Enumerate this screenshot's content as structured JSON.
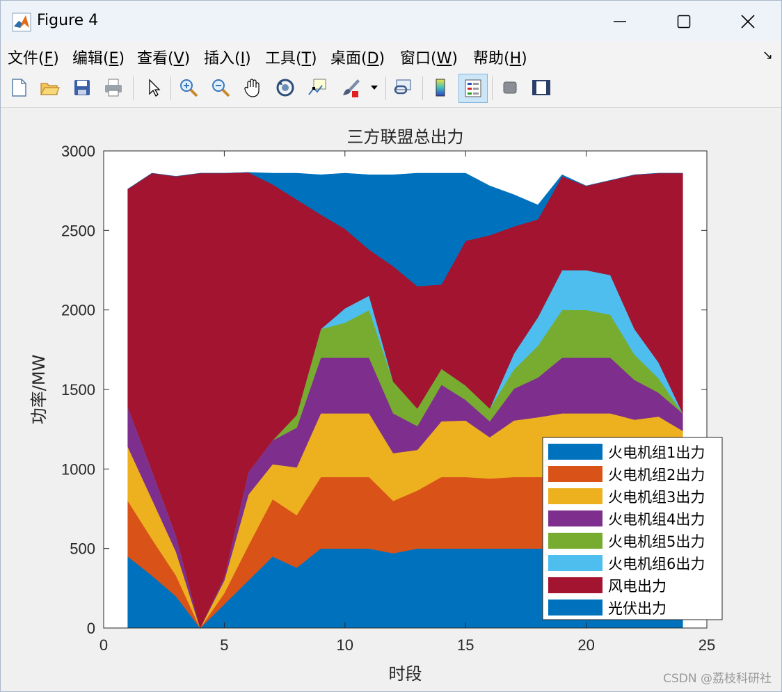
{
  "window": {
    "title": "Figure 4"
  },
  "menu": [
    {
      "label": "文件(",
      "key": "F",
      "end": ")"
    },
    {
      "label": "编辑(",
      "key": "E",
      "end": ")"
    },
    {
      "label": "查看(",
      "key": "V",
      "end": ")"
    },
    {
      "label": "插入(",
      "key": "I",
      "end": ")"
    },
    {
      "label": "工具(",
      "key": "T",
      "end": ")"
    },
    {
      "label": "桌面(",
      "key": "D",
      "end": ")"
    },
    {
      "label": "窗口(",
      "key": "W",
      "end": ")"
    },
    {
      "label": "帮助(",
      "key": "H",
      "end": ")"
    }
  ],
  "toolbar": [
    "new-file-icon",
    "open-folder-icon",
    "save-icon",
    "print-icon",
    "pointer-icon",
    "zoom-in-icon",
    "zoom-out-icon",
    "pan-hand-icon",
    "rotate-3d-icon",
    "data-cursor-icon",
    "brush-icon",
    "link-plot-icon",
    "colorbar-icon",
    "legend-icon",
    "hide-plot-tools-icon",
    "show-plot-tools-icon"
  ],
  "watermark": "CSDN @荔枝科研社",
  "chart_data": {
    "type": "area",
    "title": "三方联盟总出力",
    "xlabel": "时段",
    "ylabel": "功率/MW",
    "xlim": [
      0,
      25
    ],
    "ylim": [
      0,
      3000
    ],
    "xticks": [
      0,
      5,
      10,
      15,
      20,
      25
    ],
    "yticks": [
      0,
      500,
      1000,
      1500,
      2000,
      2500,
      3000
    ],
    "grid": false,
    "legend_position": "bottom-right",
    "x": [
      1,
      2,
      3,
      4,
      5,
      6,
      7,
      8,
      9,
      10,
      11,
      12,
      13,
      14,
      15,
      16,
      17,
      18,
      19,
      20,
      21,
      22,
      23,
      24
    ],
    "series": [
      {
        "name": "火电机组1出力",
        "color": "#0072BD",
        "values": [
          450,
          330,
          200,
          0,
          150,
          300,
          450,
          380,
          500,
          500,
          500,
          470,
          500,
          500,
          500,
          500,
          500,
          500,
          500,
          500,
          500,
          500,
          500,
          500
        ]
      },
      {
        "name": "火电机组2出力",
        "color": "#D95319",
        "values": [
          350,
          230,
          130,
          0,
          70,
          220,
          360,
          330,
          450,
          450,
          450,
          330,
          365,
          450,
          450,
          440,
          450,
          450,
          450,
          450,
          450,
          450,
          450,
          450
        ]
      },
      {
        "name": "火电机组3出力",
        "color": "#EDB120",
        "values": [
          340,
          250,
          150,
          0,
          80,
          320,
          220,
          300,
          400,
          400,
          400,
          300,
          255,
          350,
          355,
          260,
          355,
          375,
          400,
          400,
          400,
          360,
          380,
          290
        ]
      },
      {
        "name": "火电机组4出力",
        "color": "#7E2F8E",
        "values": [
          250,
          180,
          100,
          0,
          20,
          140,
          150,
          250,
          350,
          350,
          350,
          250,
          150,
          230,
          130,
          100,
          200,
          250,
          350,
          350,
          350,
          250,
          150,
          110
        ]
      },
      {
        "name": "火电机组5出力",
        "color": "#77AC30",
        "values": [
          0,
          0,
          0,
          0,
          0,
          0,
          0,
          80,
          180,
          220,
          300,
          200,
          110,
          100,
          90,
          80,
          120,
          200,
          300,
          300,
          270,
          160,
          90,
          0
        ]
      },
      {
        "name": "火电机组6出力",
        "color": "#4DBEEE",
        "values": [
          0,
          0,
          0,
          0,
          0,
          0,
          0,
          0,
          0,
          90,
          90,
          0,
          0,
          0,
          0,
          0,
          100,
          180,
          250,
          250,
          250,
          160,
          100,
          0
        ]
      },
      {
        "name": "风电出力",
        "color": "#A2142F",
        "values": [
          1370,
          1870,
          2260,
          2860,
          2540,
          1885,
          1610,
          1355,
          720,
          500,
          290,
          725,
          770,
          530,
          910,
          1090,
          800,
          615,
          590,
          530,
          595,
          970,
          1190,
          1510
        ]
      },
      {
        "name": "光伏出力",
        "color": "#0072BD",
        "values": [
          0,
          0,
          0,
          0,
          0,
          0,
          70,
          165,
          250,
          350,
          470,
          575,
          710,
          700,
          425,
          310,
          200,
          90,
          10,
          0,
          0,
          0,
          0,
          0
        ]
      }
    ]
  }
}
